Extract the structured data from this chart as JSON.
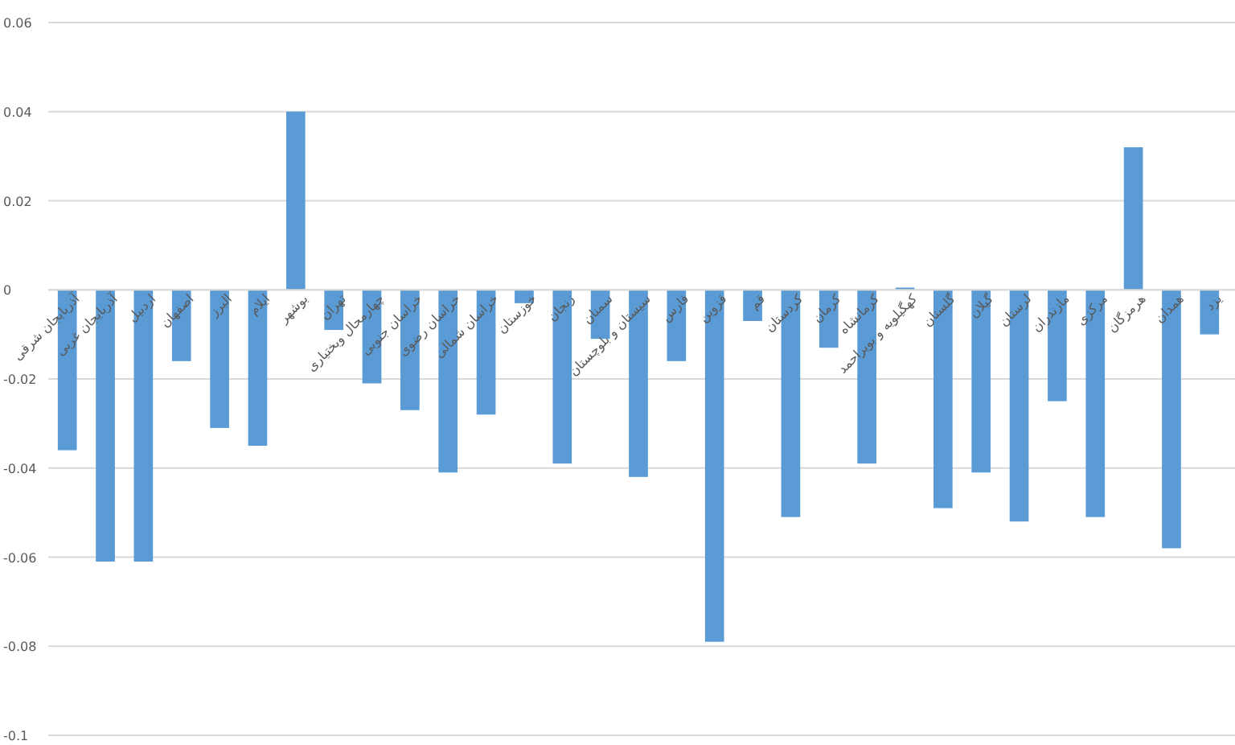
{
  "chart_data": {
    "type": "bar",
    "categories": [
      "آذربایجان شرقی",
      "آذربایجان غربی",
      "اردبیل",
      "اصفهان",
      "البرز",
      "ایلام",
      "بوشهر",
      "تهران",
      "چهارمحال وبختیاری",
      "خراسان جنوبی",
      "خراسان رضوی",
      "خراسان شمالی",
      "خوزستان",
      "زنجان",
      "سمنان",
      "سیستان و بلوچستان",
      "فارس",
      "قزوین",
      "قم",
      "کردستان",
      "کرمان",
      "کرمانشاه",
      "کهگیلویه و بویراحمد",
      "گلستان",
      "گیلان",
      "لرستان",
      "مازندران",
      "مرکزی",
      "هرمزگان",
      "همدان",
      "یزد"
    ],
    "values": [
      -0.036,
      -0.061,
      -0.061,
      -0.016,
      -0.031,
      -0.035,
      0.04,
      -0.009,
      -0.021,
      -0.027,
      -0.041,
      -0.028,
      -0.003,
      -0.039,
      -0.011,
      -0.042,
      -0.016,
      -0.079,
      -0.007,
      -0.051,
      -0.013,
      -0.039,
      0.0005,
      -0.049,
      -0.041,
      -0.052,
      -0.025,
      -0.051,
      0.032,
      -0.058,
      -0.01
    ],
    "color": "#5b9bd5",
    "ylim": [
      -0.1,
      0.06
    ],
    "yticks": [
      -0.1,
      -0.08,
      -0.06,
      -0.04,
      -0.02,
      0,
      0.02,
      0.04,
      0.06
    ],
    "grid": "y"
  }
}
